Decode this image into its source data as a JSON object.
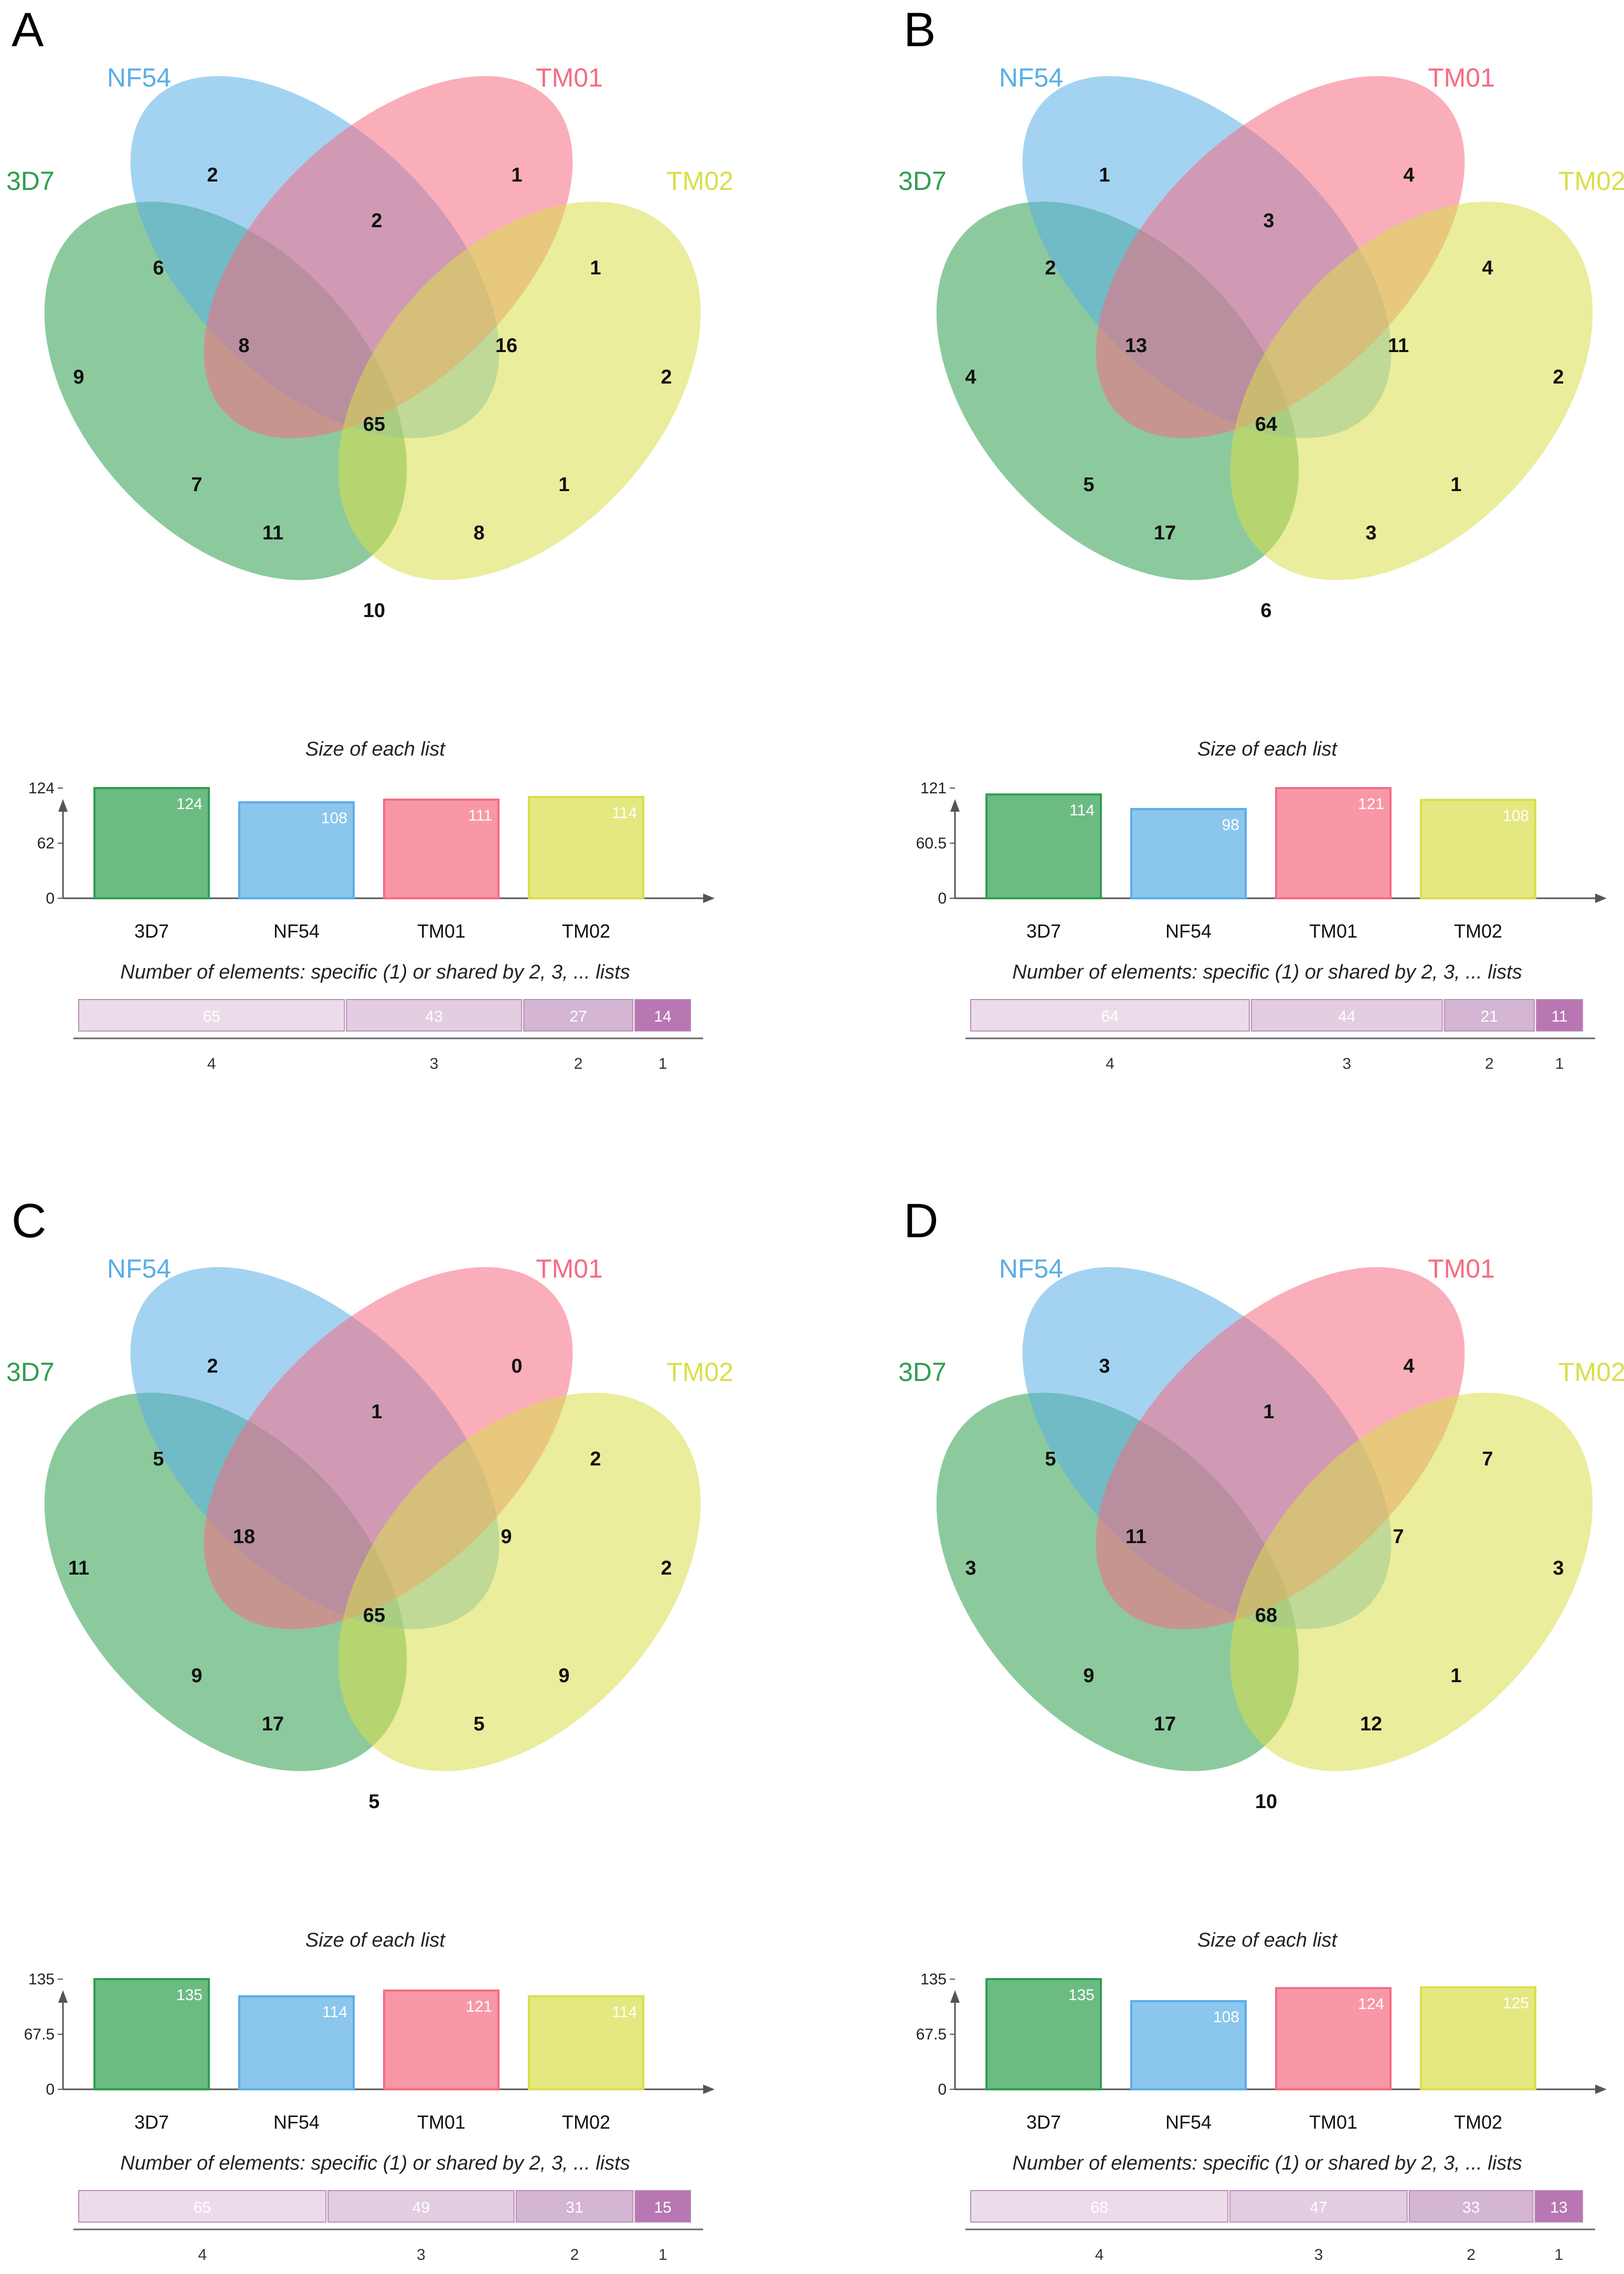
{
  "colors": {
    "3D7": "#2e9e4f",
    "NF54": "#5aaee6",
    "TM01": "#f56c82",
    "TM02": "#d9de4a",
    "shared_shades": [
      "#ecdcea",
      "#e2cde1",
      "#d4b5d3",
      "#b877b2"
    ]
  },
  "shared_labels": [
    "4",
    "3",
    "2",
    "1"
  ],
  "panels": [
    {
      "letter": "A",
      "set_labels": {
        "3D7": "3D7",
        "NF54": "NF54",
        "TM01": "TM01",
        "TM02": "TM02"
      },
      "regions": {
        "NF54": "2",
        "TM01": "1",
        "3D7": "9",
        "TM02": "2",
        "NF54_TM01": "2",
        "3D7_NF54": "6",
        "TM01_TM02": "1",
        "3D7_NF54_TM01": "8",
        "NF54_TM01_TM02": "16",
        "all": "65",
        "3D7_TM01": "7",
        "NF54_TM02": "1",
        "3D7_TM01_TM02": "11",
        "3D7_NF54_TM02": "8",
        "3D7_TM02": "10"
      },
      "bar_chart": {
        "title": "Size of each list",
        "categories": [
          "3D7",
          "NF54",
          "TM01",
          "TM02"
        ],
        "values": [
          124,
          108,
          111,
          114
        ],
        "yticks": [
          "0",
          "62",
          "124"
        ],
        "ymax": 124
      },
      "shared": {
        "title": "Number of elements: specific (1) or shared by 2, 3, ... lists",
        "values": [
          65,
          43,
          27,
          14
        ]
      }
    },
    {
      "letter": "B",
      "set_labels": {
        "3D7": "3D7",
        "NF54": "NF54",
        "TM01": "TM01",
        "TM02": "TM02"
      },
      "regions": {
        "NF54": "1",
        "TM01": "4",
        "3D7": "4",
        "TM02": "2",
        "NF54_TM01": "3",
        "3D7_NF54": "2",
        "TM01_TM02": "4",
        "3D7_NF54_TM01": "13",
        "NF54_TM01_TM02": "11",
        "all": "64",
        "3D7_TM01": "5",
        "NF54_TM02": "1",
        "3D7_TM01_TM02": "17",
        "3D7_NF54_TM02": "3",
        "3D7_TM02": "6"
      },
      "bar_chart": {
        "title": "Size of each list",
        "categories": [
          "3D7",
          "NF54",
          "TM01",
          "TM02"
        ],
        "values": [
          114,
          98,
          121,
          108
        ],
        "yticks": [
          "0",
          "60.5",
          "121"
        ],
        "ymax": 121
      },
      "shared": {
        "title": "Number of elements: specific (1) or shared by 2, 3, ... lists",
        "values": [
          64,
          44,
          21,
          11
        ]
      }
    },
    {
      "letter": "C",
      "set_labels": {
        "3D7": "3D7",
        "NF54": "NF54",
        "TM01": "TM01",
        "TM02": "TM02"
      },
      "regions": {
        "NF54": "2",
        "TM01": "0",
        "3D7": "11",
        "TM02": "2",
        "NF54_TM01": "1",
        "3D7_NF54": "5",
        "TM01_TM02": "2",
        "3D7_NF54_TM01": "18",
        "NF54_TM01_TM02": "9",
        "all": "65",
        "3D7_TM01": "9",
        "NF54_TM02": "9",
        "3D7_TM01_TM02": "17",
        "3D7_NF54_TM02": "5",
        "3D7_TM02": "5"
      },
      "bar_chart": {
        "title": "Size of each list",
        "categories": [
          "3D7",
          "NF54",
          "TM01",
          "TM02"
        ],
        "values": [
          135,
          114,
          121,
          114
        ],
        "yticks": [
          "0",
          "67.5",
          "135"
        ],
        "ymax": 135
      },
      "shared": {
        "title": "Number of elements: specific (1) or shared by 2, 3, ... lists",
        "values": [
          65,
          49,
          31,
          15
        ]
      }
    },
    {
      "letter": "D",
      "set_labels": {
        "3D7": "3D7",
        "NF54": "NF54",
        "TM01": "TM01",
        "TM02": "TM02"
      },
      "regions": {
        "NF54": "3",
        "TM01": "4",
        "3D7": "3",
        "TM02": "3",
        "NF54_TM01": "1",
        "3D7_NF54": "5",
        "TM01_TM02": "7",
        "3D7_NF54_TM01": "11",
        "NF54_TM01_TM02": "7",
        "all": "68",
        "3D7_TM01": "9",
        "NF54_TM02": "1",
        "3D7_TM01_TM02": "17",
        "3D7_NF54_TM02": "12",
        "3D7_TM02": "10"
      },
      "bar_chart": {
        "title": "Size of each list",
        "categories": [
          "3D7",
          "NF54",
          "TM01",
          "TM02"
        ],
        "values": [
          135,
          108,
          124,
          125
        ],
        "yticks": [
          "0",
          "67.5",
          "135"
        ],
        "ymax": 135
      },
      "shared": {
        "title": "Number of elements: specific (1) or shared by 2, 3, ... lists",
        "values": [
          68,
          47,
          33,
          13
        ]
      }
    }
  ]
}
